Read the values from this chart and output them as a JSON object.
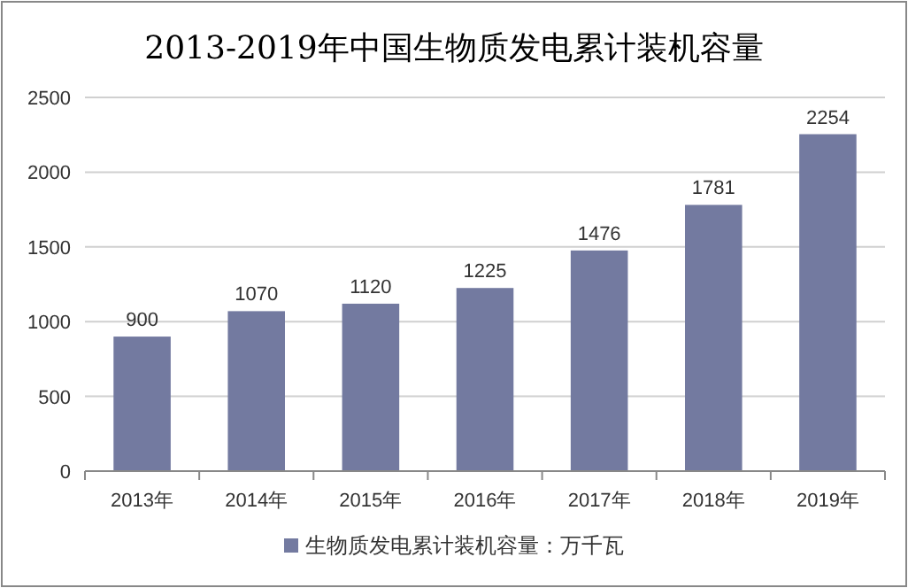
{
  "chart_data": {
    "type": "bar",
    "title": "2013-2019年中国生物质发电累计装机容量",
    "categories": [
      "2013年",
      "2014年",
      "2015年",
      "2016年",
      "2017年",
      "2018年",
      "2019年"
    ],
    "series": [
      {
        "name": "生物质发电累计装机容量：万千瓦",
        "color": "#737aa0",
        "values": [
          900,
          1070,
          1120,
          1225,
          1476,
          1781,
          2254
        ]
      }
    ],
    "ylim": [
      0,
      2500
    ],
    "yticks": [
      0,
      500,
      1000,
      1500,
      2000,
      2500
    ],
    "grid": "y",
    "data_labels": true,
    "legend": "bottom"
  }
}
